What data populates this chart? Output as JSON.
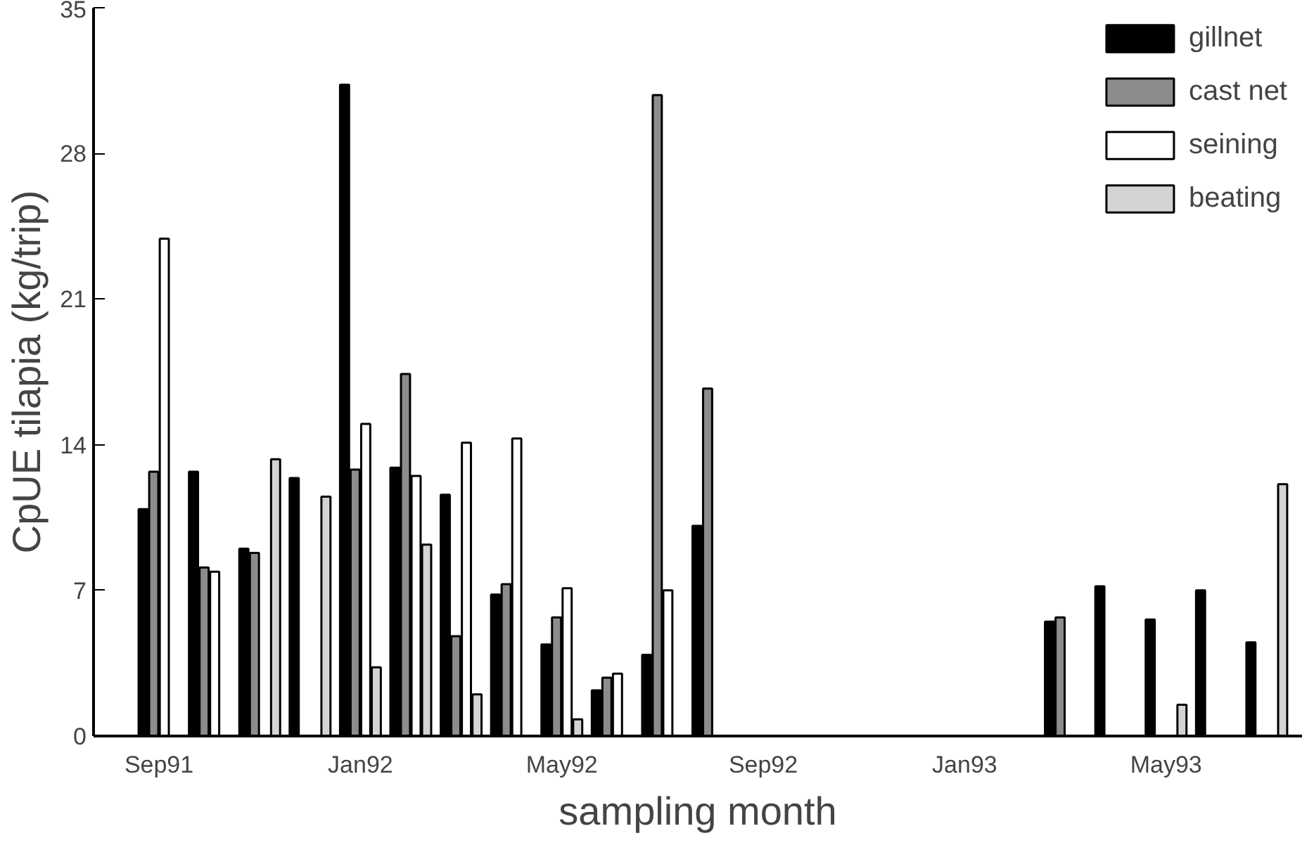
{
  "chart_data": {
    "type": "bar",
    "xlabel": "sampling month",
    "ylabel": "CpUE tilapia (kg/trip)",
    "categories": [
      "Sep91",
      null,
      null,
      null,
      "Jan92",
      null,
      null,
      null,
      "May92",
      null,
      null,
      null,
      "Sep92",
      null,
      null,
      null,
      "Jan93",
      null,
      null,
      null,
      "May93",
      null,
      null
    ],
    "series": [
      {
        "name": "gillnet",
        "color": "#000000",
        "values": [
          10.9,
          12.7,
          9.0,
          12.4,
          31.3,
          12.9,
          11.6,
          6.8,
          4.4,
          2.2,
          3.9,
          10.1,
          null,
          null,
          null,
          null,
          null,
          null,
          5.5,
          7.2,
          5.6,
          7.0,
          4.5
        ]
      },
      {
        "name": "cast net",
        "color": "#8c8c8c",
        "values": [
          12.7,
          8.1,
          8.8,
          null,
          12.8,
          17.4,
          4.8,
          7.3,
          5.7,
          2.8,
          30.8,
          16.7,
          null,
          null,
          null,
          null,
          null,
          null,
          5.7,
          null,
          null,
          null,
          null
        ]
      },
      {
        "name": "seining",
        "color": "#ffffff",
        "values": [
          23.9,
          7.9,
          null,
          null,
          15.0,
          12.5,
          14.1,
          14.3,
          7.1,
          3.0,
          7.0,
          null,
          null,
          null,
          null,
          null,
          null,
          null,
          null,
          null,
          null,
          null,
          null
        ]
      },
      {
        "name": "beating",
        "color": "#d4d4d4",
        "values": [
          null,
          null,
          13.3,
          11.5,
          3.3,
          9.2,
          2.0,
          null,
          0.8,
          null,
          null,
          null,
          null,
          null,
          null,
          null,
          null,
          null,
          null,
          null,
          1.5,
          null,
          12.1
        ]
      }
    ],
    "ylim": [
      0,
      35
    ],
    "yticks": [
      0,
      7,
      14,
      21,
      28,
      35
    ],
    "grid": false,
    "legend": "top right"
  }
}
